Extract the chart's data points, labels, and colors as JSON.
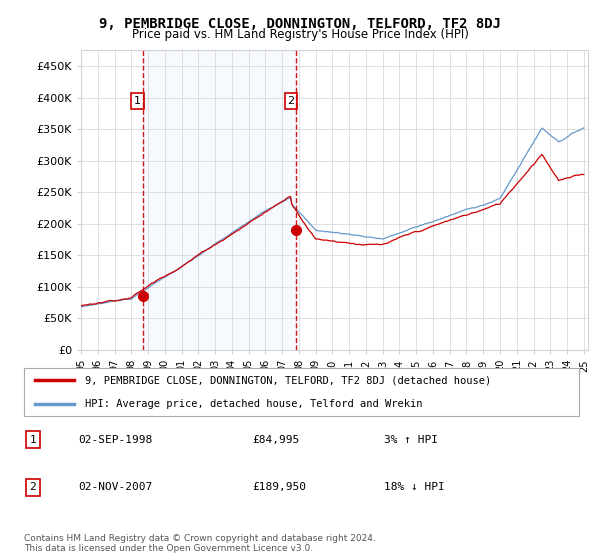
{
  "title": "9, PEMBRIDGE CLOSE, DONNINGTON, TELFORD, TF2 8DJ",
  "subtitle": "Price paid vs. HM Land Registry's House Price Index (HPI)",
  "legend_line1": "9, PEMBRIDGE CLOSE, DONNINGTON, TELFORD, TF2 8DJ (detached house)",
  "legend_line2": "HPI: Average price, detached house, Telford and Wrekin",
  "annotation1_label": "1",
  "annotation1_date": "02-SEP-1998",
  "annotation1_price": "£84,995",
  "annotation1_hpi": "3% ↑ HPI",
  "annotation2_label": "2",
  "annotation2_date": "02-NOV-2007",
  "annotation2_price": "£189,950",
  "annotation2_hpi": "18% ↓ HPI",
  "footer": "Contains HM Land Registry data © Crown copyright and database right 2024.\nThis data is licensed under the Open Government Licence v3.0.",
  "property_color": "#cc0000",
  "hpi_color": "#6699cc",
  "shade_color": "#ddeeff",
  "vline_color": "#cc0000",
  "ylim": [
    0,
    475000
  ],
  "yticks": [
    0,
    50000,
    100000,
    150000,
    200000,
    250000,
    300000,
    350000,
    400000,
    450000
  ],
  "purchase1_year": 1998.67,
  "purchase1_price": 84995,
  "purchase2_year": 2007.83,
  "purchase2_price": 189950
}
